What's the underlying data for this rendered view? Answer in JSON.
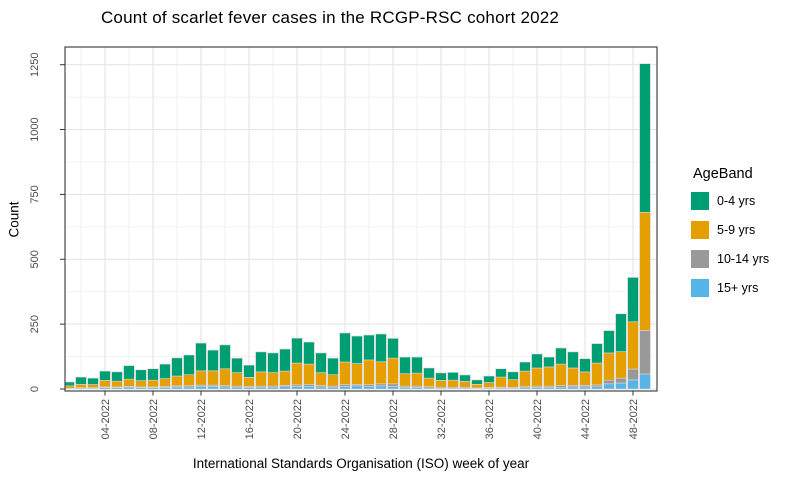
{
  "title": "Count of scarlet fever cases in the RCGP-RSC cohort 2022",
  "x_axis_label": "International Standards Organisation (ISO) week of year",
  "y_axis_label": "Count",
  "legend": {
    "title": "AgeBand",
    "items": [
      {
        "label": "0-4 yrs",
        "color": "#009E73"
      },
      {
        "label": "5-9 yrs",
        "color": "#E69F00"
      },
      {
        "label": "10-14 yrs",
        "color": "#999999"
      },
      {
        "label": "15+ yrs",
        "color": "#56B4E9"
      }
    ]
  },
  "chart_data": {
    "type": "bar",
    "stacked": true,
    "title": "Count of scarlet fever cases in the RCGP-RSC cohort 2022",
    "xlabel": "International Standards Organisation (ISO) week of year",
    "ylabel": "Count",
    "ylim": [
      0,
      1300
    ],
    "grid": true,
    "legend_position": "right",
    "legend_title": "AgeBand",
    "weeks": [
      1,
      2,
      3,
      4,
      5,
      6,
      7,
      8,
      9,
      10,
      11,
      12,
      13,
      14,
      15,
      16,
      17,
      18,
      19,
      20,
      21,
      22,
      23,
      24,
      25,
      26,
      27,
      28,
      29,
      30,
      31,
      32,
      33,
      34,
      35,
      36,
      37,
      38,
      39,
      40,
      41,
      42,
      43,
      44,
      45,
      46,
      47,
      48,
      49
    ],
    "x_tick_weeks": [
      4,
      8,
      12,
      16,
      20,
      24,
      28,
      32,
      36,
      40,
      44,
      48
    ],
    "x_tick_labels": [
      "04-2022",
      "08-2022",
      "12-2022",
      "16-2022",
      "20-2022",
      "24-2022",
      "28-2022",
      "32-2022",
      "36-2022",
      "40-2022",
      "44-2022",
      "48-2022"
    ],
    "y_tick_values": [
      0,
      250,
      500,
      750,
      1000,
      1250
    ],
    "y_tick_labels": [
      "0",
      "250",
      "500",
      "750",
      "1000",
      "1250"
    ],
    "y_minor_gridlines": [
      125,
      375,
      625,
      875,
      1125
    ],
    "stack_order_bottom_to_top": [
      "15+ yrs",
      "10-14 yrs",
      "5-9 yrs",
      "0-4 yrs"
    ],
    "series": [
      {
        "name": "0-4 yrs",
        "color": "#009E73",
        "values": [
          15,
          28,
          25,
          36,
          36,
          52,
          42,
          44,
          56,
          70,
          76,
          107,
          80,
          92,
          56,
          47,
          77,
          76,
          85,
          96,
          85,
          76,
          64,
          112,
          106,
          96,
          107,
          76,
          64,
          62,
          39,
          29,
          30,
          25,
          17,
          25,
          32,
          30,
          35,
          54,
          38,
          62,
          62,
          51,
          75,
          86,
          146,
          171,
          573
        ]
      },
      {
        "name": "5-9 yrs",
        "color": "#E69F00",
        "values": [
          9,
          13,
          12,
          25,
          22,
          28,
          24,
          26,
          30,
          38,
          42,
          55,
          55,
          65,
          52,
          35,
          55,
          52,
          55,
          84,
          78,
          50,
          44,
          87,
          80,
          95,
          85,
          99,
          48,
          50,
          33,
          26,
          27,
          22,
          14,
          19,
          39,
          30,
          60,
          70,
          74,
          83,
          67,
          52,
          84,
          105,
          102,
          182,
          455
        ]
      },
      {
        "name": "10-14 yrs",
        "color": "#999999",
        "values": [
          1,
          2,
          2,
          2,
          3,
          3,
          3,
          3,
          4,
          4,
          5,
          5,
          5,
          5,
          4,
          4,
          4,
          4,
          5,
          6,
          8,
          5,
          4,
          7,
          6,
          7,
          8,
          10,
          5,
          5,
          5,
          4,
          4,
          4,
          2,
          3,
          3,
          3,
          4,
          5,
          5,
          6,
          6,
          6,
          7,
          14,
          19,
          42,
          168
        ]
      },
      {
        "name": "15+ yrs",
        "color": "#56B4E9",
        "values": [
          2,
          3,
          3,
          6,
          5,
          7,
          5,
          5,
          6,
          8,
          8,
          10,
          10,
          8,
          7,
          6,
          7,
          7,
          9,
          10,
          10,
          8,
          7,
          10,
          12,
          10,
          12,
          10,
          6,
          6,
          4,
          3,
          3,
          3,
          2,
          3,
          4,
          3,
          5,
          6,
          6,
          7,
          8,
          8,
          9,
          20,
          23,
          35,
          58
        ]
      }
    ]
  }
}
